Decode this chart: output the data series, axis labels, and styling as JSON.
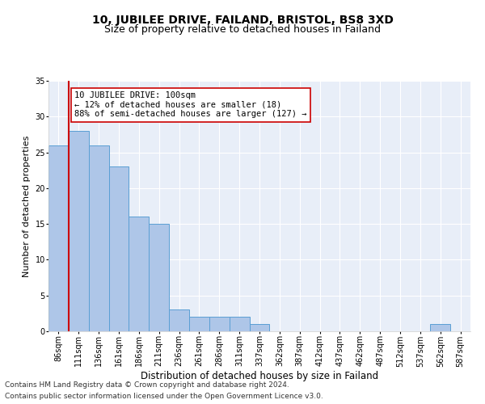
{
  "title1": "10, JUBILEE DRIVE, FAILAND, BRISTOL, BS8 3XD",
  "title2": "Size of property relative to detached houses in Failand",
  "xlabel": "Distribution of detached houses by size in Failand",
  "ylabel": "Number of detached properties",
  "categories": [
    "86sqm",
    "111sqm",
    "136sqm",
    "161sqm",
    "186sqm",
    "211sqm",
    "236sqm",
    "261sqm",
    "286sqm",
    "311sqm",
    "337sqm",
    "362sqm",
    "387sqm",
    "412sqm",
    "437sqm",
    "462sqm",
    "487sqm",
    "512sqm",
    "537sqm",
    "562sqm",
    "587sqm"
  ],
  "values": [
    26,
    28,
    26,
    23,
    16,
    15,
    3,
    2,
    2,
    2,
    1,
    0,
    0,
    0,
    0,
    0,
    0,
    0,
    0,
    1,
    0
  ],
  "bar_color": "#aec6e8",
  "bar_edgecolor": "#5a9fd4",
  "vline_color": "#cc0000",
  "annotation_text": "10 JUBILEE DRIVE: 100sqm\n← 12% of detached houses are smaller (18)\n88% of semi-detached houses are larger (127) →",
  "annotation_box_color": "#ffffff",
  "annotation_box_edgecolor": "#cc0000",
  "ylim": [
    0,
    35
  ],
  "yticks": [
    0,
    5,
    10,
    15,
    20,
    25,
    30,
    35
  ],
  "background_color": "#e8eef8",
  "footer1": "Contains HM Land Registry data © Crown copyright and database right 2024.",
  "footer2": "Contains public sector information licensed under the Open Government Licence v3.0.",
  "title1_fontsize": 10,
  "title2_fontsize": 9,
  "xlabel_fontsize": 8.5,
  "ylabel_fontsize": 8,
  "tick_fontsize": 7,
  "annotation_fontsize": 7.5,
  "footer_fontsize": 6.5
}
